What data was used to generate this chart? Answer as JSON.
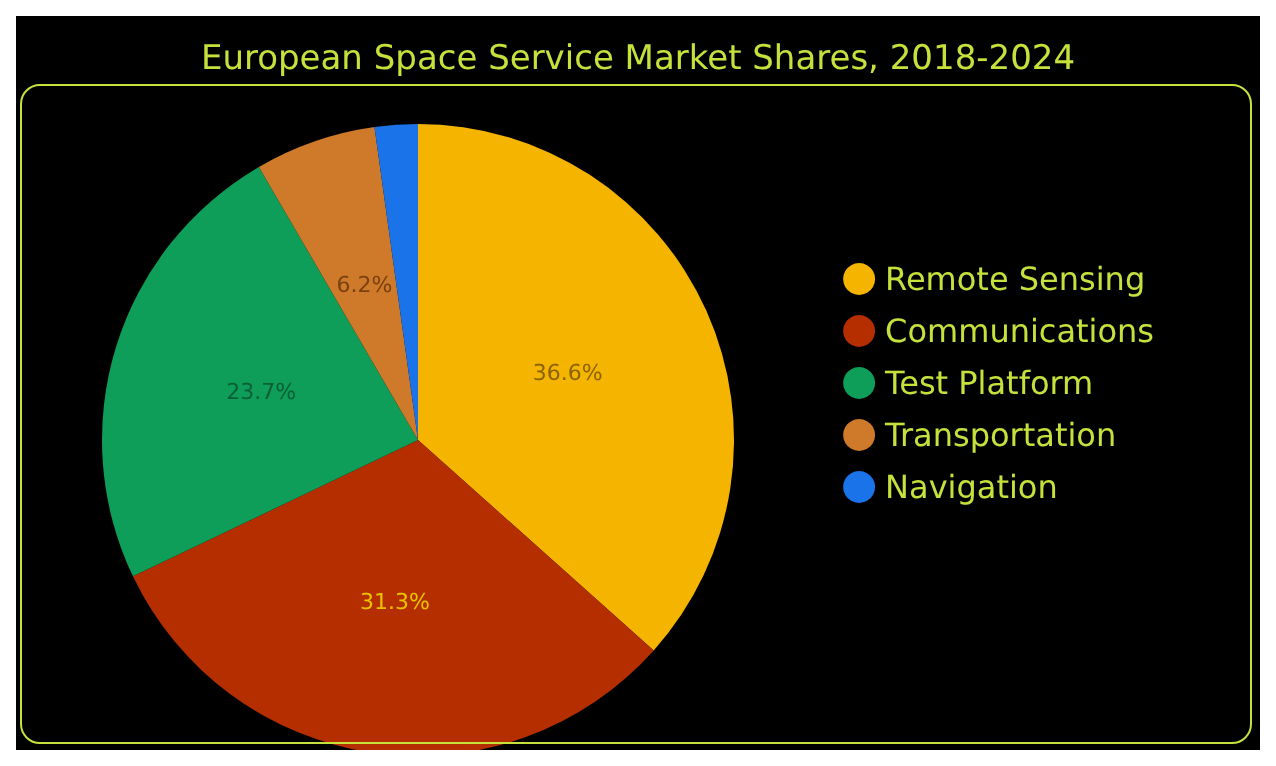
{
  "chart_data": {
    "type": "pie",
    "title": "European Space Service Market Shares, 2018-2024",
    "categories": [
      "Remote Sensing",
      "Communications",
      "Test Platform",
      "Transportation",
      "Navigation"
    ],
    "values": [
      36.6,
      31.3,
      23.7,
      6.2,
      2.2
    ],
    "colors": [
      "#f5b400",
      "#b52e00",
      "#0e9e5a",
      "#cf7a2a",
      "#1a73e8"
    ],
    "value_labels": [
      "36.6%",
      "31.3%",
      "23.7%",
      "6.2%",
      null
    ],
    "legend": "right"
  }
}
